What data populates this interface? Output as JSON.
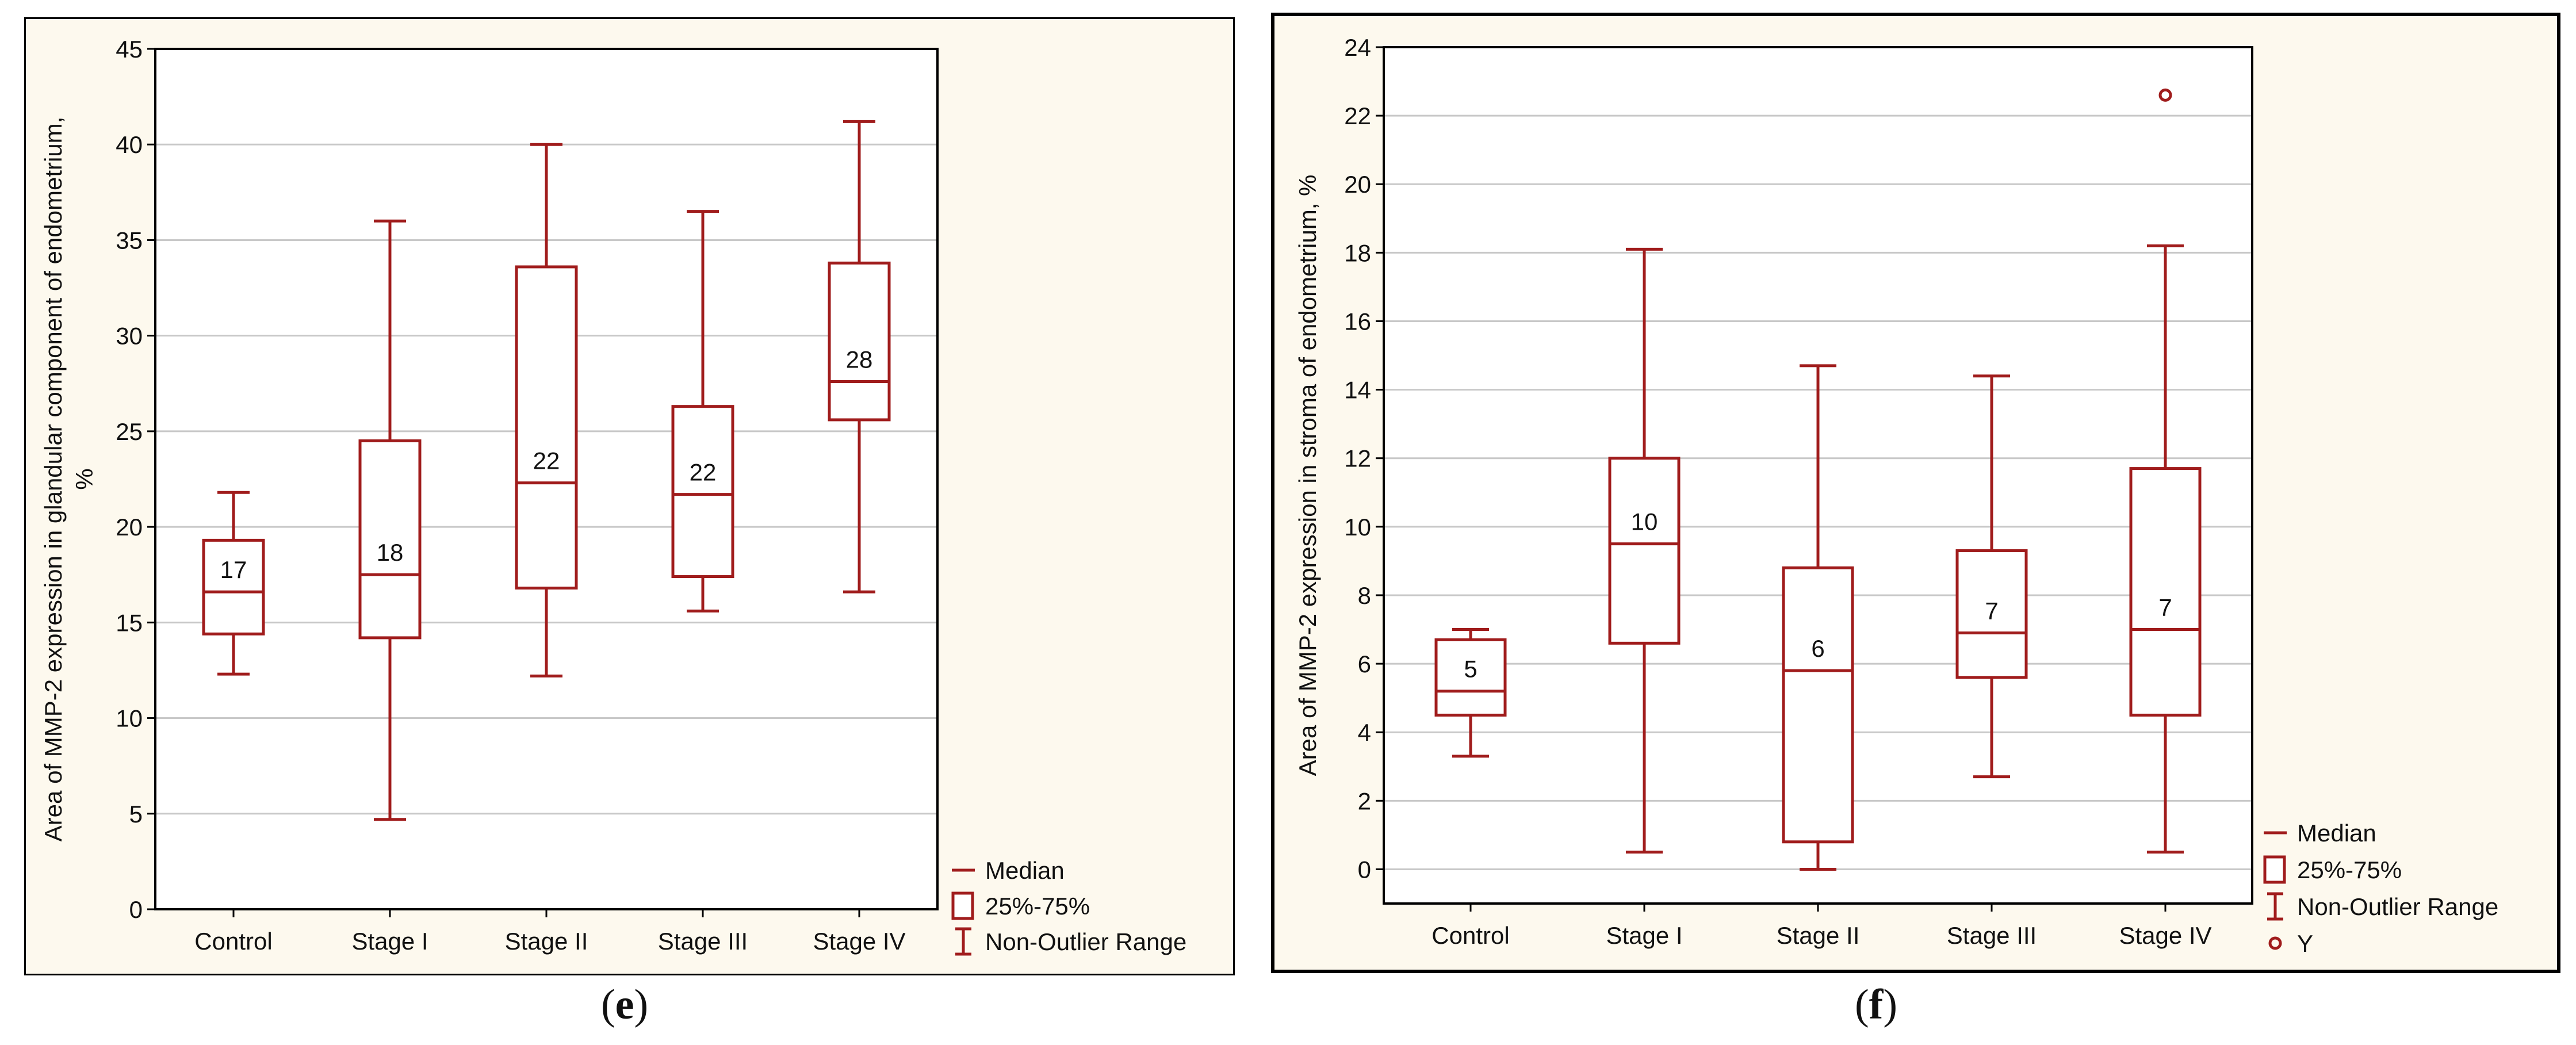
{
  "panels": [
    {
      "caption_open": "(",
      "caption_letter": "e",
      "caption_close": ")",
      "chart_data": {
        "type": "boxplot",
        "categories": [
          "Control",
          "Stage I",
          "Stage II",
          "Stage III",
          "Stage IV"
        ],
        "ylabel_line1": "Area of MMP-2 expression in glandular component of endometrium,",
        "ylabel_line2": "%",
        "ylim": [
          0,
          45
        ],
        "yticks": [
          0,
          5,
          10,
          15,
          20,
          25,
          30,
          35,
          40,
          45
        ],
        "grid": true,
        "boxes": [
          {
            "category": "Control",
            "whisker_low": 12.3,
            "q1": 14.4,
            "median": 16.6,
            "q3": 19.3,
            "whisker_high": 21.8,
            "label": "17"
          },
          {
            "category": "Stage I",
            "whisker_low": 4.7,
            "q1": 14.2,
            "median": 17.5,
            "q3": 24.5,
            "whisker_high": 36.0,
            "label": "18"
          },
          {
            "category": "Stage II",
            "whisker_low": 12.2,
            "q1": 16.8,
            "median": 22.3,
            "q3": 33.6,
            "whisker_high": 40.0,
            "label": "22"
          },
          {
            "category": "Stage III",
            "whisker_low": 15.6,
            "q1": 17.4,
            "median": 21.7,
            "q3": 26.3,
            "whisker_high": 36.5,
            "label": "22"
          },
          {
            "category": "Stage IV",
            "whisker_low": 16.6,
            "q1": 25.6,
            "median": 27.6,
            "q3": 33.8,
            "whisker_high": 41.2,
            "label": "28"
          }
        ],
        "outliers": [],
        "legend": [
          "Median",
          "25%-75%",
          "Non-Outlier Range"
        ],
        "legend_position": "bottom-right",
        "color": "#a01c1c"
      }
    },
    {
      "caption_open": "(",
      "caption_letter": "f",
      "caption_close": ")",
      "chart_data": {
        "type": "boxplot",
        "categories": [
          "Control",
          "Stage I",
          "Stage II",
          "Stage III",
          "Stage IV"
        ],
        "ylabel_line1": "Area of MMP-2 expression in stroma of endometrium, %",
        "ylabel_line2": "",
        "ylim": [
          -1,
          24
        ],
        "yticks": [
          0,
          2,
          4,
          6,
          8,
          10,
          12,
          14,
          16,
          18,
          20,
          22,
          24
        ],
        "grid": true,
        "boxes": [
          {
            "category": "Control",
            "whisker_low": 3.3,
            "q1": 4.5,
            "median": 5.2,
            "q3": 6.7,
            "whisker_high": 7.0,
            "label": "5"
          },
          {
            "category": "Stage I",
            "whisker_low": 0.5,
            "q1": 6.6,
            "median": 9.5,
            "q3": 12.0,
            "whisker_high": 18.1,
            "label": "10"
          },
          {
            "category": "Stage II",
            "whisker_low": 0.0,
            "q1": 0.8,
            "median": 5.8,
            "q3": 8.8,
            "whisker_high": 14.7,
            "label": "6"
          },
          {
            "category": "Stage III",
            "whisker_low": 2.7,
            "q1": 5.6,
            "median": 6.9,
            "q3": 9.3,
            "whisker_high": 14.4,
            "label": "7"
          },
          {
            "category": "Stage IV",
            "whisker_low": 0.5,
            "q1": 4.5,
            "median": 7.0,
            "q3": 11.7,
            "whisker_high": 18.2,
            "label": "7"
          }
        ],
        "outliers": [
          {
            "category": "Stage IV",
            "value": 22.6
          }
        ],
        "legend": [
          "Median",
          "25%-75%",
          "Non-Outlier Range",
          "Y"
        ],
        "legend_position": "bottom-right",
        "color": "#a01c1c"
      }
    }
  ]
}
